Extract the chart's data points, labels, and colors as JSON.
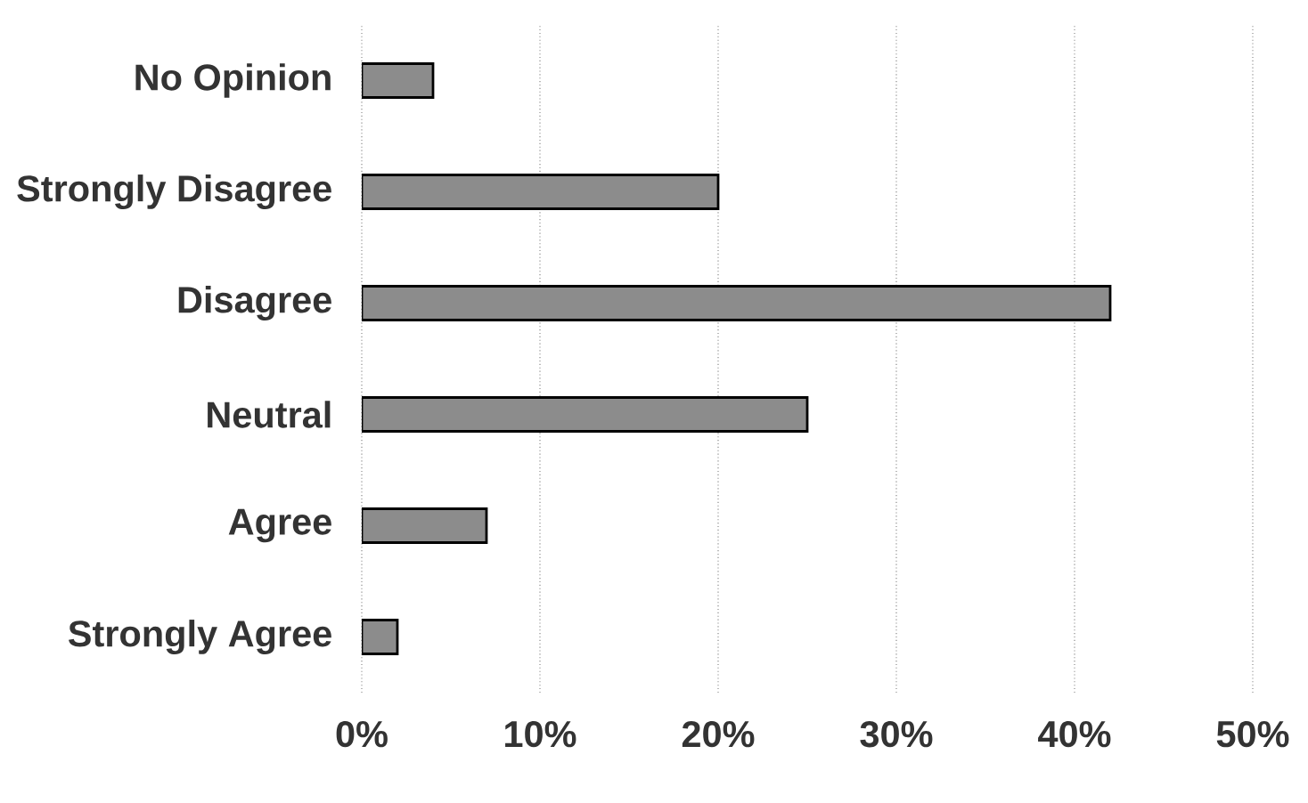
{
  "chart_data": {
    "type": "bar",
    "orientation": "horizontal",
    "categories": [
      "No Opinion",
      "Strongly Disagree",
      "Disagree",
      "Neutral",
      "Agree",
      "Strongly Agree"
    ],
    "values": [
      4,
      20,
      42,
      25,
      7,
      2
    ],
    "color": "#8c8c8c",
    "xlim": [
      0,
      50
    ],
    "xticks": [
      {
        "value": 0,
        "label": "0%"
      },
      {
        "value": 10,
        "label": "10%"
      },
      {
        "value": 20,
        "label": "20%"
      },
      {
        "value": 30,
        "label": "30%"
      },
      {
        "value": 40,
        "label": "40%"
      },
      {
        "value": 50,
        "label": "50%"
      }
    ],
    "grid": "x"
  }
}
